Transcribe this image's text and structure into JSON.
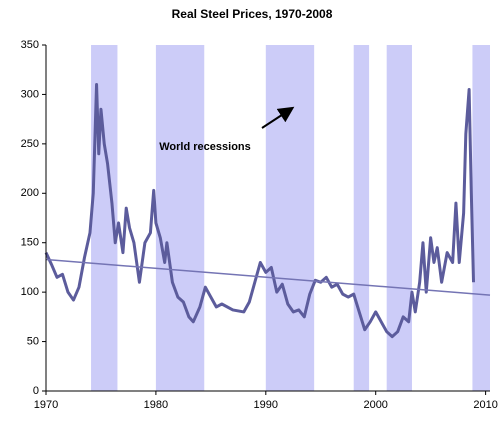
{
  "chart_data": {
    "type": "line",
    "title": "Real Steel Prices, 1970-2008",
    "annotation": "World recessions",
    "xlim": [
      1970,
      2010.4
    ],
    "xticks": [
      1970,
      1980,
      1990,
      2000,
      2010
    ],
    "ylim": [
      0,
      350
    ],
    "yticks": [
      0,
      50,
      100,
      150,
      200,
      250,
      300,
      350
    ],
    "grid": false,
    "recession_color": "#ccccf8",
    "recessions": [
      [
        1974.1,
        1976.5
      ],
      [
        1980,
        1984.4
      ],
      [
        1990,
        1994.4
      ],
      [
        1998,
        1999.4
      ],
      [
        2001,
        2003.3
      ],
      [
        2008.8,
        2010.4
      ]
    ],
    "series": [
      {
        "color": "#5c5c9c",
        "x": [
          1970,
          1970.5,
          1971,
          1971.5,
          1972,
          1972.5,
          1973,
          1973.5,
          1974,
          1974.3,
          1974.6,
          1974.8,
          1975,
          1975.3,
          1975.6,
          1976,
          1976.3,
          1976.6,
          1977,
          1977.3,
          1977.6,
          1978,
          1978.5,
          1979,
          1979.5,
          1979.8,
          1980,
          1980.4,
          1980.8,
          1981,
          1981.5,
          1982,
          1982.5,
          1983,
          1983.4,
          1984,
          1984.5,
          1985,
          1985.5,
          1986,
          1987,
          1988,
          1988.5,
          1989,
          1989.5,
          1990,
          1990.5,
          1991,
          1991.5,
          1992,
          1992.5,
          1993,
          1993.5,
          1994,
          1994.5,
          1995,
          1995.5,
          1996,
          1996.5,
          1997,
          1997.5,
          1998,
          1998.5,
          1999,
          1999.5,
          2000,
          2000.5,
          2001,
          2001.5,
          2002,
          2002.5,
          2003,
          2003.3,
          2003.6,
          2004,
          2004.3,
          2004.6,
          2005,
          2005.3,
          2005.6,
          2006,
          2006.5,
          2007,
          2007.3,
          2007.6,
          2008,
          2008.2,
          2008.5,
          2008.7,
          2008.9
        ],
        "values": [
          140,
          128,
          115,
          118,
          100,
          92,
          105,
          135,
          160,
          200,
          310,
          240,
          285,
          250,
          230,
          190,
          150,
          170,
          140,
          185,
          165,
          150,
          110,
          150,
          160,
          203,
          170,
          155,
          130,
          150,
          110,
          95,
          90,
          75,
          70,
          85,
          105,
          95,
          85,
          88,
          82,
          80,
          90,
          110,
          130,
          120,
          125,
          100,
          108,
          88,
          80,
          82,
          75,
          98,
          112,
          110,
          115,
          105,
          108,
          98,
          95,
          98,
          80,
          62,
          70,
          80,
          70,
          60,
          55,
          60,
          75,
          70,
          100,
          80,
          110,
          150,
          100,
          155,
          130,
          145,
          110,
          140,
          130,
          190,
          130,
          180,
          260,
          305,
          200,
          110
        ]
      },
      {
        "color": "#7474b4",
        "x": [
          1970,
          2010.4
        ],
        "values": [
          133,
          97
        ]
      }
    ]
  }
}
